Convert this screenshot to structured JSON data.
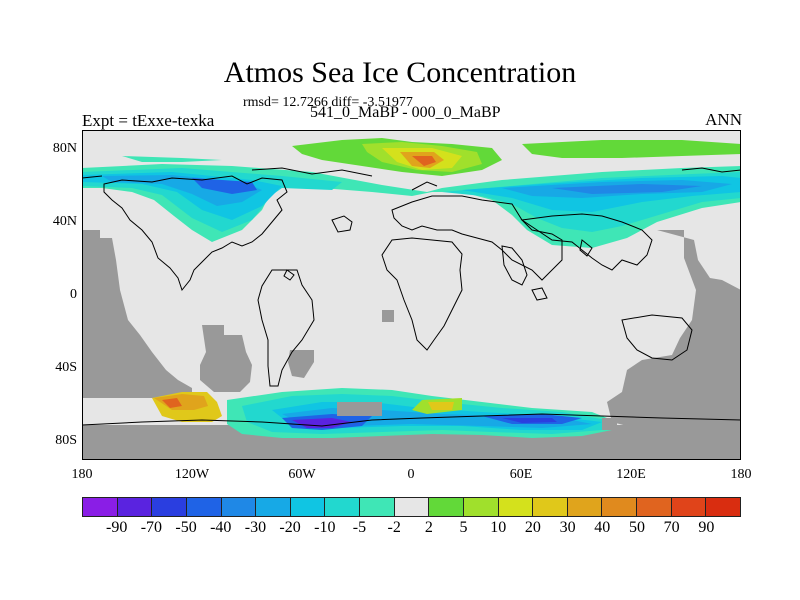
{
  "title": "Atmos Sea Ice Concentration",
  "stats": "rmsd= 12.7266 diff= -3.51977",
  "subtitle": "541_0_MaBP - 000_0_MaBP",
  "expt": "Expt = tExxe-texka",
  "season": "ANN",
  "y_ticks": [
    "80N",
    "40N",
    "0",
    "40S",
    "80S"
  ],
  "x_ticks": [
    "180",
    "120W",
    "60W",
    "0",
    "60E",
    "120E",
    "180"
  ],
  "colorbar": {
    "labels": [
      "-90",
      "-70",
      "-50",
      "-40",
      "-30",
      "-20",
      "-10",
      "-5",
      "-2",
      "2",
      "5",
      "10",
      "20",
      "30",
      "40",
      "50",
      "70",
      "90"
    ],
    "colors": [
      "#8a1ee6",
      "#5a23e0",
      "#2a3ee0",
      "#1f63e6",
      "#1f88e6",
      "#17a9e6",
      "#10c5e3",
      "#22d8cf",
      "#3fe6b6",
      "#e6e6e6",
      "#62d939",
      "#a0e02c",
      "#d4e11c",
      "#e0c81a",
      "#e0a41c",
      "#e08a1e",
      "#e0641f",
      "#e0441a",
      "#d92d10"
    ]
  },
  "colors": {
    "land": "#999999",
    "no_change": "#e6e6e6"
  }
}
